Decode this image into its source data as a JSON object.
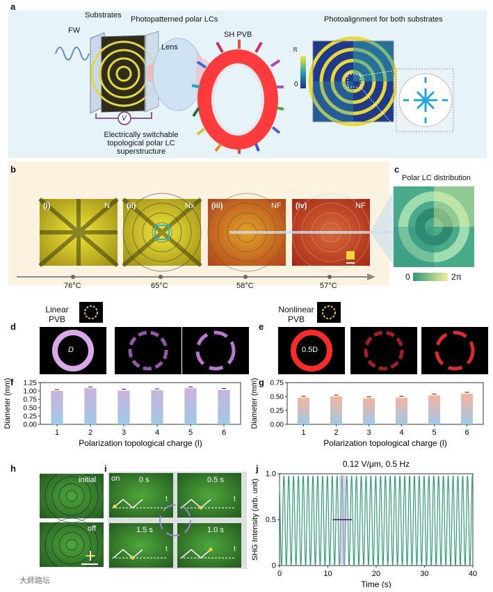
{
  "panel_letters": {
    "a": "a",
    "b": "b",
    "c": "c",
    "d": "d",
    "e": "e",
    "f": "f",
    "g": "g",
    "h": "h",
    "i": "i",
    "j": "j"
  },
  "panel_a": {
    "fw": "FW",
    "substrates": "Substrates",
    "polar_lcs": "Photopatterned polar LCs",
    "lens": "Lens",
    "sh_pvb": "SH PVB",
    "voltage": "V",
    "switchable_line1": "Electrically switchable",
    "switchable_line2": "topological polar LC superstructure",
    "photoalign_title": "Photoalignment for both substrates",
    "scale_top": "π",
    "scale_bottom": "0"
  },
  "panel_b": {
    "phases": [
      {
        "roman": "(i)",
        "phase": "N",
        "temp": "76°C"
      },
      {
        "roman": "(ii)",
        "phase": "Nx",
        "temp": "65°C"
      },
      {
        "roman": "(iii)",
        "phase": "NF",
        "temp": "58°C"
      },
      {
        "roman": "(iv)",
        "phase": "NF",
        "temp": "57°C"
      }
    ]
  },
  "panel_c": {
    "title": "Polar LC distribution",
    "scale_min": "0",
    "scale_max": "2π"
  },
  "panel_d": {
    "title_line1": "Linear",
    "title_line2": "PVB",
    "diameter_label": "D"
  },
  "panel_e": {
    "title_line1": "Nonlinear",
    "title_line2": "PVB",
    "diameter_label": "0.5D"
  },
  "chart_data": [
    {
      "type": "bar",
      "panel": "f",
      "categories": [
        "1",
        "2",
        "3",
        "4",
        "5",
        "6"
      ],
      "values": [
        1.0,
        1.08,
        1.01,
        1.02,
        1.08,
        1.03
      ],
      "ylim": [
        0,
        1.25
      ],
      "yticks": [
        "0.00",
        "0.25",
        "0.50",
        "0.75",
        "1.00",
        "1.25"
      ],
      "xlabel": "Polarization topological charge (l)",
      "ylabel": "Diameter (mm)"
    },
    {
      "type": "bar",
      "panel": "g",
      "categories": [
        "1",
        "2",
        "3",
        "4",
        "5",
        "6"
      ],
      "values": [
        0.48,
        0.5,
        0.47,
        0.48,
        0.52,
        0.55
      ],
      "ylim": [
        0,
        0.75
      ],
      "yticks": [
        "0.00",
        "0.25",
        "0.50",
        "0.75"
      ],
      "xlabel": "Polarization topological charge (l)",
      "ylabel": "Diameter (mm)"
    },
    {
      "type": "line",
      "panel": "j",
      "title": "0.12 V/μm, 0.5 Hz",
      "xlabel": "Time (s)",
      "ylabel": "SHG Intensity (arb. unit)",
      "xlim": [
        0,
        40
      ],
      "ylim": [
        0,
        1.0
      ],
      "xticks": [
        "0",
        "10",
        "20",
        "30",
        "40"
      ],
      "yticks": [
        "0",
        "0.5",
        "1.0"
      ],
      "oscillation_frequency_hz": 1.0,
      "amplitude_max": 0.98,
      "amplitude_min": 0.0
    }
  ],
  "panel_h": {
    "initial": "initial",
    "off": "off"
  },
  "panel_i": {
    "on": "on",
    "t0": "0 s",
    "t1": "0.5 s",
    "t2": "1.0 s",
    "t3": "1.5 s",
    "t": "t"
  },
  "watermark": "大師路坛"
}
